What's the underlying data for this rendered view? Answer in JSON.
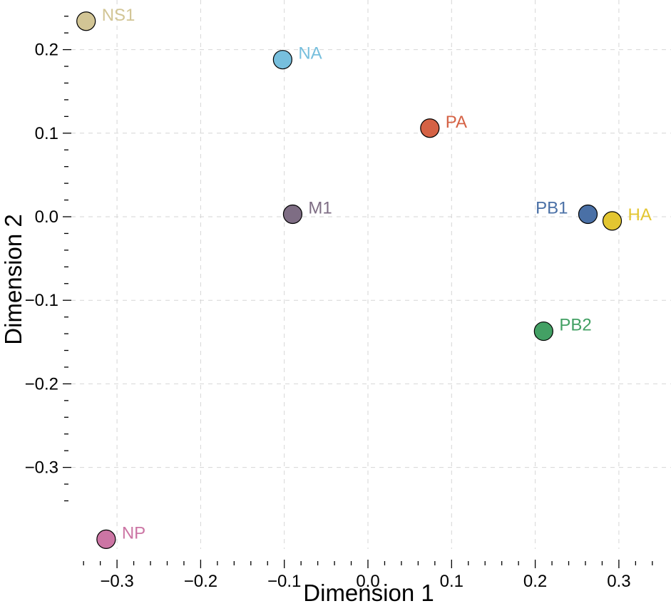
{
  "chart_data": {
    "type": "scatter",
    "title": "",
    "xlabel": "Dimension 1",
    "ylabel": "Dimension 2",
    "xlim": [
      -0.34,
      0.35
    ],
    "ylim": [
      -0.41,
      0.245
    ],
    "grid": true,
    "x_ticks": [
      -0.3,
      -0.2,
      -0.1,
      0.0,
      0.1,
      0.2,
      0.3
    ],
    "x_tick_labels": [
      "−0.3",
      "−0.2",
      "−0.1",
      "0.0",
      "0.1",
      "0.2",
      "0.3"
    ],
    "y_ticks": [
      0.2,
      0.1,
      0.0,
      -0.1,
      -0.2,
      -0.3
    ],
    "y_tick_labels": [
      "0.2",
      "0.1",
      "0.0",
      "−0.1",
      "−0.2",
      "−0.3"
    ],
    "points": [
      {
        "label": "NS1",
        "x": -0.337,
        "y": 0.234,
        "color": "#d2c595",
        "label_side": "right"
      },
      {
        "label": "NA",
        "x": -0.102,
        "y": 0.188,
        "color": "#77bfdd",
        "label_side": "right"
      },
      {
        "label": "PA",
        "x": 0.074,
        "y": 0.106,
        "color": "#d56245",
        "label_side": "right"
      },
      {
        "label": "M1",
        "x": -0.09,
        "y": 0.003,
        "color": "#7e6d84",
        "label_side": "right"
      },
      {
        "label": "PB1",
        "x": 0.263,
        "y": 0.003,
        "color": "#4a70a6",
        "label_side": "left"
      },
      {
        "label": "HA",
        "x": 0.292,
        "y": -0.005,
        "color": "#e3c631",
        "label_side": "right"
      },
      {
        "label": "PB2",
        "x": 0.21,
        "y": -0.137,
        "color": "#43a064",
        "label_side": "right"
      },
      {
        "label": "NP",
        "x": -0.313,
        "y": -0.386,
        "color": "#cc75a4",
        "label_side": "right"
      }
    ]
  }
}
